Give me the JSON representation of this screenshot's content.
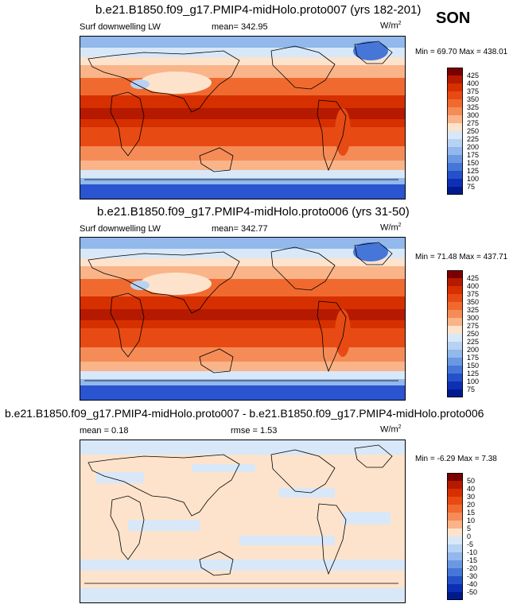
{
  "season": "SON",
  "panels": [
    {
      "title": "b.e21.B1850.f09_g17.PMIP4-midHolo.proto007 (yrs 182-201)",
      "left_text": "Surf downwelling LW",
      "center_text": "mean= 342.95",
      "units": "W/m",
      "units_sup": "2",
      "minmax": "Min =  69.70 Max = 438.01",
      "colorbar_labels": [
        "425",
        "400",
        "375",
        "350",
        "325",
        "300",
        "275",
        "250",
        "225",
        "200",
        "175",
        "150",
        "125",
        "100",
        "75"
      ]
    },
    {
      "title": "b.e21.B1850.f09_g17.PMIP4-midHolo.proto006 (yrs 31-50)",
      "left_text": "Surf downwelling LW",
      "center_text": "mean= 342.77",
      "units": "W/m",
      "units_sup": "2",
      "minmax": "Min =  71.48 Max = 437.71",
      "colorbar_labels": [
        "425",
        "400",
        "375",
        "350",
        "325",
        "300",
        "275",
        "250",
        "225",
        "200",
        "175",
        "150",
        "125",
        "100",
        "75"
      ]
    },
    {
      "title": "b.e21.B1850.f09_g17.PMIP4-midHolo.proto007 - b.e21.B1850.f09_g17.PMIP4-midHolo.proto006",
      "left_text": "mean =   0.18",
      "center_text": "rmse =   1.53",
      "units": "W/m",
      "units_sup": "2",
      "minmax": "Min =  -6.29 Max =   7.38",
      "colorbar_labels": [
        "50",
        "40",
        "30",
        "20",
        "15",
        "10",
        "5",
        "0",
        "-5",
        "-10",
        "-15",
        "-20",
        "-30",
        "-40",
        "-50"
      ]
    }
  ],
  "colors": {
    "abs_scale": [
      "#7a0000",
      "#b51a00",
      "#d63000",
      "#e84a14",
      "#f06a30",
      "#f58c57",
      "#f9b489",
      "#fde3cc",
      "#d8e8f8",
      "#b7d2f2",
      "#92b8ec",
      "#6c98e2",
      "#4676d8",
      "#2451c8",
      "#0d2fb5",
      "#001a8e"
    ],
    "diff_scale": [
      "#7a0000",
      "#b51a00",
      "#d63000",
      "#e84a14",
      "#f06a30",
      "#f58c57",
      "#f9b489",
      "#fde3cc",
      "#d8e8f8",
      "#b7d2f2",
      "#92b8ec",
      "#6c98e2",
      "#4676d8",
      "#2451c8",
      "#0d2fb5",
      "#001a8e"
    ],
    "ocean_cold": "#2a54d0",
    "coast": "#000000"
  }
}
